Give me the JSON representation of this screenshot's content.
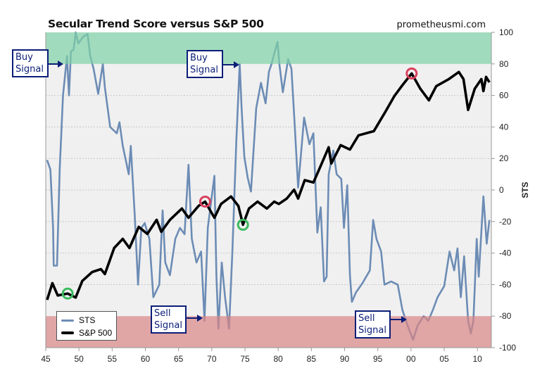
{
  "header": {
    "title": "Secular Trend Score versus S&P 500",
    "site": "prometheusmi.com"
  },
  "annotations": {
    "buy_1": {
      "line1": "Buy",
      "line2": "Signal"
    },
    "buy_2": {
      "line1": "Buy",
      "line2": "Signal"
    },
    "sell_1": {
      "line1": "Sell",
      "line2": "Signal"
    },
    "sell_2": {
      "line1": "Sell",
      "line2": "Signal"
    }
  },
  "chart_data": {
    "type": "line",
    "title": "Secular Trend Score versus S&P 500",
    "ylabel": "STS",
    "xlabel": "",
    "xlim": [
      1945,
      2012.1
    ],
    "ylim": [
      -100,
      100
    ],
    "x_ticks": [
      1945,
      1950,
      1955,
      1960,
      1965,
      1970,
      1975,
      1980,
      1985,
      1990,
      1995,
      2000,
      2005,
      2010
    ],
    "x_tick_labels": [
      "45",
      "50",
      "55",
      "60",
      "65",
      "70",
      "75",
      "80",
      "85",
      "90",
      "95",
      "00",
      "05",
      "10"
    ],
    "y_ticks": [
      -100,
      -80,
      -60,
      -40,
      -20,
      0,
      20,
      40,
      60,
      80,
      100
    ],
    "y_tick_labels": [
      "-100",
      "-80",
      "-60",
      "-40",
      "-20",
      "0",
      "20",
      "40",
      "60",
      "80",
      "100"
    ],
    "grid": true,
    "bands": [
      {
        "from": 80,
        "to": 100,
        "color": "#7fd1a6"
      },
      {
        "from": -100,
        "to": -80,
        "color": "#d98585"
      }
    ],
    "legend": {
      "position": "bottom-left",
      "entries": [
        "STS",
        "S&P 500"
      ]
    },
    "series": [
      {
        "name": "STS",
        "color": "#6c8cb5",
        "axis": "primary",
        "points": [
          [
            1945.2,
            19
          ],
          [
            1945.7,
            13
          ],
          [
            1946.1,
            -24
          ],
          [
            1946.2,
            -48
          ],
          [
            1946.7,
            -48
          ],
          [
            1947.1,
            13
          ],
          [
            1947.6,
            60
          ],
          [
            1948.2,
            85
          ],
          [
            1948.5,
            60
          ],
          [
            1948.8,
            88
          ],
          [
            1949.2,
            89
          ],
          [
            1949.5,
            100
          ],
          [
            1949.9,
            93
          ],
          [
            1950.6,
            97
          ],
          [
            1951.3,
            99
          ],
          [
            1951.7,
            85
          ],
          [
            1952.2,
            77
          ],
          [
            1952.9,
            61
          ],
          [
            1953.6,
            80
          ],
          [
            1953.9,
            65
          ],
          [
            1954.7,
            40
          ],
          [
            1955.7,
            36
          ],
          [
            1956.1,
            43
          ],
          [
            1956.6,
            28
          ],
          [
            1957.5,
            10
          ],
          [
            1957.8,
            28
          ],
          [
            1958.4,
            -16
          ],
          [
            1958.9,
            -60
          ],
          [
            1959.4,
            -24
          ],
          [
            1959.9,
            -21
          ],
          [
            1960.6,
            -31
          ],
          [
            1961.2,
            -68
          ],
          [
            1962.1,
            -60
          ],
          [
            1962.6,
            -13
          ],
          [
            1963,
            -46
          ],
          [
            1963.7,
            -54
          ],
          [
            1964.5,
            -31
          ],
          [
            1965.2,
            -24
          ],
          [
            1965.9,
            -28
          ],
          [
            1966.5,
            16
          ],
          [
            1967,
            -31
          ],
          [
            1967.7,
            -46
          ],
          [
            1968.4,
            -39
          ],
          [
            1968.9,
            -83
          ],
          [
            1969.4,
            -24
          ],
          [
            1970.4,
            9
          ],
          [
            1970.7,
            -54
          ],
          [
            1971,
            -88
          ],
          [
            1971.5,
            -46
          ],
          [
            1972,
            -68
          ],
          [
            1972.6,
            -88
          ],
          [
            1973.1,
            -39
          ],
          [
            1973.7,
            31
          ],
          [
            1974.2,
            80
          ],
          [
            1974.5,
            51
          ],
          [
            1974.9,
            21
          ],
          [
            1975.4,
            8
          ],
          [
            1975.9,
            -1
          ],
          [
            1976.7,
            52
          ],
          [
            1977.4,
            68
          ],
          [
            1978.1,
            55
          ],
          [
            1978.6,
            75
          ],
          [
            1979,
            80
          ],
          [
            1979.9,
            94
          ],
          [
            1980.2,
            79
          ],
          [
            1980.7,
            62
          ],
          [
            1981.5,
            83
          ],
          [
            1982,
            77
          ],
          [
            1982.5,
            40
          ],
          [
            1983,
            1.5
          ],
          [
            1983.9,
            46
          ],
          [
            1984.7,
            29
          ],
          [
            1985.3,
            36
          ],
          [
            1985.9,
            -27
          ],
          [
            1986.4,
            -11
          ],
          [
            1986.9,
            -58
          ],
          [
            1987.3,
            -55
          ],
          [
            1987.6,
            10
          ],
          [
            1988.3,
            25
          ],
          [
            1988.8,
            10
          ],
          [
            1989.5,
            7
          ],
          [
            1989.9,
            -24
          ],
          [
            1990.4,
            3
          ],
          [
            1990.8,
            -54
          ],
          [
            1991.1,
            -71
          ],
          [
            1991.7,
            -65
          ],
          [
            1992.7,
            -59
          ],
          [
            1993.8,
            -51
          ],
          [
            1994.3,
            -19
          ],
          [
            1994.8,
            -31
          ],
          [
            1995.5,
            -39
          ],
          [
            1996,
            -60
          ],
          [
            1997,
            -58
          ],
          [
            1998,
            -60
          ],
          [
            1998.7,
            -76
          ],
          [
            1999.4,
            -85
          ],
          [
            2000.3,
            -95
          ],
          [
            2001,
            -86
          ],
          [
            2001.9,
            -80
          ],
          [
            2002.6,
            -83
          ],
          [
            2003.3,
            -76
          ],
          [
            2004,
            -68
          ],
          [
            2005,
            -61
          ],
          [
            2005.8,
            -39
          ],
          [
            2006.5,
            -51
          ],
          [
            2007,
            -37
          ],
          [
            2007.5,
            -68
          ],
          [
            2008,
            -42
          ],
          [
            2008.6,
            -83
          ],
          [
            2009,
            -91
          ],
          [
            2009.4,
            -83
          ],
          [
            2009.9,
            -31
          ],
          [
            2010.2,
            -55
          ],
          [
            2010.9,
            -4
          ],
          [
            2011.4,
            -34
          ],
          [
            2011.8,
            -19
          ]
        ]
      },
      {
        "name": "S&P 500",
        "color": "#000000",
        "axis": "secondary-log-unlabeled",
        "points": [
          [
            1945.2,
            13.3
          ],
          [
            1946,
            18.9
          ],
          [
            1946.8,
            14.6
          ],
          [
            1948.3,
            15.2
          ],
          [
            1949.5,
            14
          ],
          [
            1950.5,
            19.8
          ],
          [
            1952,
            23.9
          ],
          [
            1953.3,
            25.4
          ],
          [
            1953.9,
            22.9
          ],
          [
            1955.3,
            39.6
          ],
          [
            1956.6,
            48
          ],
          [
            1957.6,
            39.6
          ],
          [
            1959,
            61.7
          ],
          [
            1960.3,
            53.2
          ],
          [
            1961.7,
            71.6
          ],
          [
            1962.4,
            55.7
          ],
          [
            1963.7,
            71.6
          ],
          [
            1965.5,
            90.8
          ],
          [
            1966.5,
            74.8
          ],
          [
            1968,
            96
          ],
          [
            1969,
            105
          ],
          [
            1970.4,
            74.8
          ],
          [
            1971.4,
            100
          ],
          [
            1972.9,
            117
          ],
          [
            1974,
            96
          ],
          [
            1974.7,
            64.6
          ],
          [
            1975.6,
            90.8
          ],
          [
            1976.9,
            105
          ],
          [
            1978.3,
            90.8
          ],
          [
            1979.4,
            105
          ],
          [
            1980.1,
            100
          ],
          [
            1981.3,
            112
          ],
          [
            1982.4,
            135
          ],
          [
            1983,
            112
          ],
          [
            1984,
            165
          ],
          [
            1985.3,
            157
          ],
          [
            1986.1,
            202
          ],
          [
            1987.6,
            329
          ],
          [
            1988,
            234
          ],
          [
            1989.4,
            344
          ],
          [
            1990.8,
            314
          ],
          [
            1992.1,
            423
          ],
          [
            1994.4,
            462
          ],
          [
            1996.1,
            689
          ],
          [
            1997.5,
            968
          ],
          [
            1998.6,
            1191
          ],
          [
            2000.1,
            1555
          ],
          [
            2001.4,
            1127
          ],
          [
            2002.7,
            885
          ],
          [
            2003.8,
            1191
          ],
          [
            2005.7,
            1380
          ],
          [
            2007.2,
            1603
          ],
          [
            2007.9,
            1380
          ],
          [
            2008.6,
            723
          ],
          [
            2009.6,
            1127
          ],
          [
            2010.6,
            1380
          ],
          [
            2010.9,
            1074
          ],
          [
            2011.3,
            1445
          ],
          [
            2011.8,
            1292
          ]
        ]
      }
    ],
    "markers": [
      {
        "series": "S&P 500",
        "x": 1948.3,
        "color": "#3cb95e"
      },
      {
        "series": "S&P 500",
        "x": 1969.0,
        "color": "#d9405e"
      },
      {
        "series": "S&P 500",
        "x": 1974.7,
        "color": "#3cb95e"
      },
      {
        "series": "S&P 500",
        "x": 2000.1,
        "color": "#d9405e"
      }
    ]
  }
}
